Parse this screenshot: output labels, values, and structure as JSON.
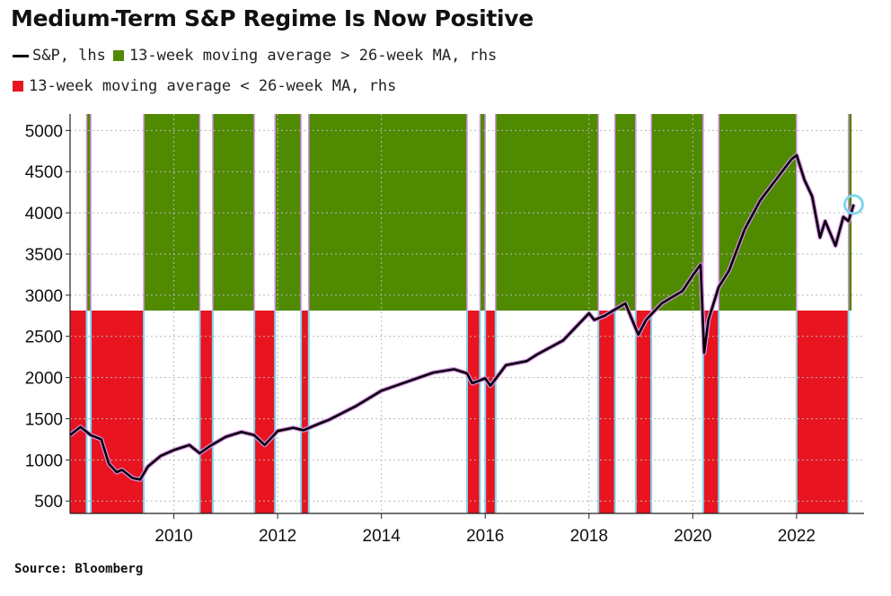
{
  "title": "Medium-Term S&P Regime Is Now Positive",
  "source": "Source: Bloomberg",
  "colors": {
    "green": "#4f8a00",
    "red": "#e8141f",
    "line": "#000000",
    "pink": "#d890e8",
    "cyan": "#7fd6ef"
  },
  "chart_data": {
    "type": "line",
    "title": "Medium-Term S&P Regime Is Now Positive",
    "legend": [
      {
        "name": "S&P, lhs",
        "kind": "line",
        "color": "#000000"
      },
      {
        "name": "13-week moving average > 26-week MA, rhs",
        "kind": "box",
        "color": "#4f8a00"
      },
      {
        "name": "13-week moving average < 26-week MA, rhs",
        "kind": "box",
        "color": "#e8141f"
      }
    ],
    "legend_placement": "top-left",
    "grid": true,
    "xlim": [
      2008.0,
      2023.3
    ],
    "ylim": [
      350,
      5200
    ],
    "yticks": [
      500,
      1000,
      1500,
      2000,
      2500,
      3000,
      3500,
      4000,
      4500,
      5000
    ],
    "xticks": [
      2010,
      2012,
      2014,
      2016,
      2018,
      2020,
      2022
    ],
    "regime_green": [
      [
        2008.32,
        2008.4
      ],
      [
        2009.42,
        2010.5
      ],
      [
        2010.75,
        2011.55
      ],
      [
        2011.95,
        2012.45
      ],
      [
        2012.6,
        2015.65
      ],
      [
        2015.9,
        2016.0
      ],
      [
        2016.2,
        2018.18
      ],
      [
        2018.5,
        2018.9
      ],
      [
        2019.2,
        2020.2
      ],
      [
        2020.5,
        2022.0
      ],
      [
        2023.0,
        2023.06
      ]
    ],
    "regime_red": [
      [
        2008.0,
        2008.32
      ],
      [
        2008.4,
        2009.42
      ],
      [
        2010.5,
        2010.75
      ],
      [
        2011.55,
        2011.95
      ],
      [
        2012.45,
        2012.6
      ],
      [
        2015.65,
        2015.9
      ],
      [
        2016.0,
        2016.2
      ],
      [
        2018.18,
        2018.5
      ],
      [
        2018.9,
        2019.2
      ],
      [
        2020.2,
        2020.5
      ],
      [
        2022.0,
        2023.0
      ]
    ],
    "series": [
      {
        "name": "S&P, lhs",
        "x": [
          2008.0,
          2008.2,
          2008.4,
          2008.6,
          2008.75,
          2008.9,
          2009.0,
          2009.2,
          2009.35,
          2009.5,
          2009.75,
          2010.0,
          2010.3,
          2010.5,
          2010.7,
          2011.0,
          2011.3,
          2011.55,
          2011.75,
          2012.0,
          2012.3,
          2012.5,
          2012.8,
          2013.0,
          2013.5,
          2014.0,
          2014.5,
          2015.0,
          2015.4,
          2015.65,
          2015.75,
          2016.0,
          2016.1,
          2016.4,
          2016.8,
          2017.0,
          2017.5,
          2018.0,
          2018.1,
          2018.3,
          2018.7,
          2018.95,
          2019.1,
          2019.4,
          2019.8,
          2020.0,
          2020.15,
          2020.22,
          2020.3,
          2020.5,
          2020.7,
          2021.0,
          2021.3,
          2021.6,
          2021.9,
          2022.0,
          2022.15,
          2022.3,
          2022.45,
          2022.55,
          2022.75,
          2022.9,
          2023.0,
          2023.1
        ],
        "values": [
          1300,
          1400,
          1300,
          1250,
          950,
          850,
          880,
          780,
          760,
          920,
          1050,
          1120,
          1180,
          1080,
          1170,
          1280,
          1340,
          1300,
          1180,
          1350,
          1390,
          1360,
          1440,
          1490,
          1650,
          1840,
          1950,
          2060,
          2100,
          2050,
          1930,
          1990,
          1900,
          2150,
          2200,
          2280,
          2450,
          2780,
          2700,
          2750,
          2900,
          2520,
          2700,
          2900,
          3050,
          3240,
          3370,
          2300,
          2700,
          3100,
          3300,
          3800,
          4150,
          4400,
          4650,
          4700,
          4400,
          4200,
          3700,
          3900,
          3600,
          3950,
          3900,
          4100
        ]
      }
    ]
  }
}
